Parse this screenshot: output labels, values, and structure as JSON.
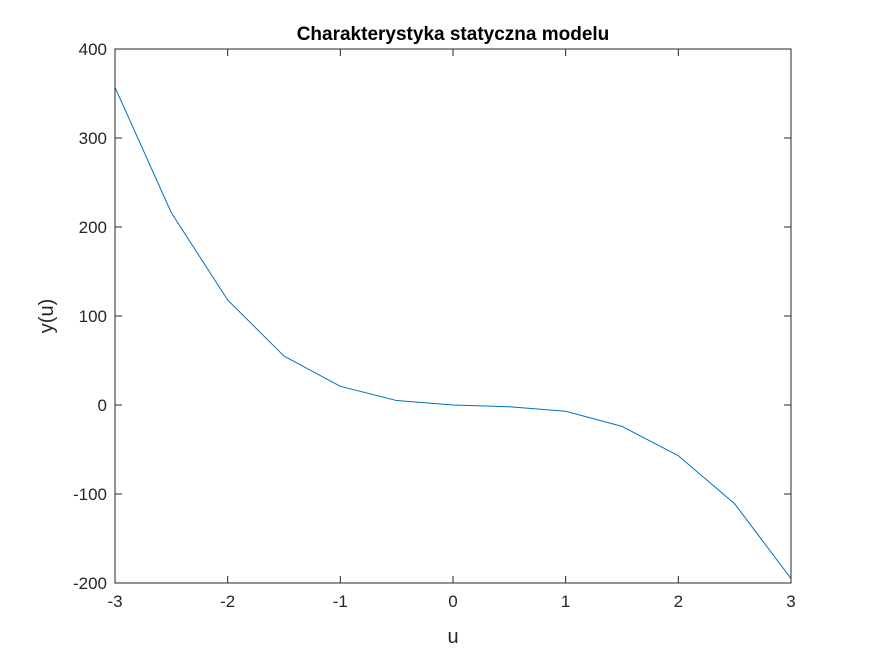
{
  "chart_data": {
    "type": "line",
    "title": "Charakterystyka statyczna modelu",
    "xlabel": "u",
    "ylabel": "y(u)",
    "xlim": [
      -3,
      3
    ],
    "ylim": [
      -200,
      400
    ],
    "xticks": [
      -3,
      -2,
      -1,
      0,
      1,
      2,
      3
    ],
    "yticks": [
      -200,
      -100,
      0,
      100,
      200,
      300,
      400
    ],
    "xtick_labels": [
      "-3",
      "-2",
      "-1",
      "0",
      "1",
      "2",
      "3"
    ],
    "ytick_labels": [
      "-200",
      "-100",
      "0",
      "100",
      "200",
      "300",
      "400"
    ],
    "grid": false,
    "box": true,
    "series": [
      {
        "color": "#0072BD",
        "x": [
          -3,
          -2.5,
          -2,
          -1.5,
          -1,
          -0.5,
          0,
          0.5,
          1,
          1.5,
          2,
          2.5,
          3
        ],
        "y": [
          357,
          216,
          118,
          55,
          21,
          5,
          0,
          -2,
          -7,
          -24,
          -57,
          -111,
          -195
        ]
      }
    ]
  }
}
